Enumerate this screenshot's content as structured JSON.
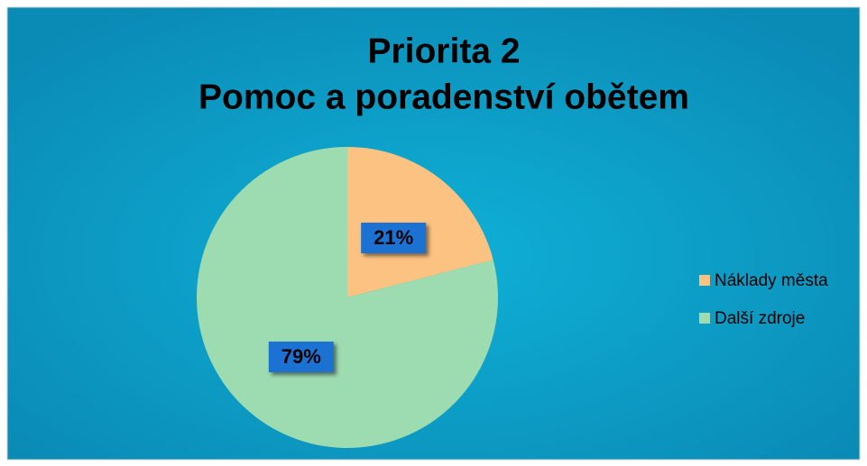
{
  "chart_data": {
    "type": "pie",
    "title": [
      "Priorita 2",
      "Pomoc a poradenství obětem"
    ],
    "categories": [
      "Náklady města",
      "Další zdroje"
    ],
    "values": [
      21,
      79
    ],
    "value_labels": [
      "21%",
      "79%"
    ],
    "colors": [
      "#fcc281",
      "#9ddbb1"
    ],
    "legend": "right"
  }
}
